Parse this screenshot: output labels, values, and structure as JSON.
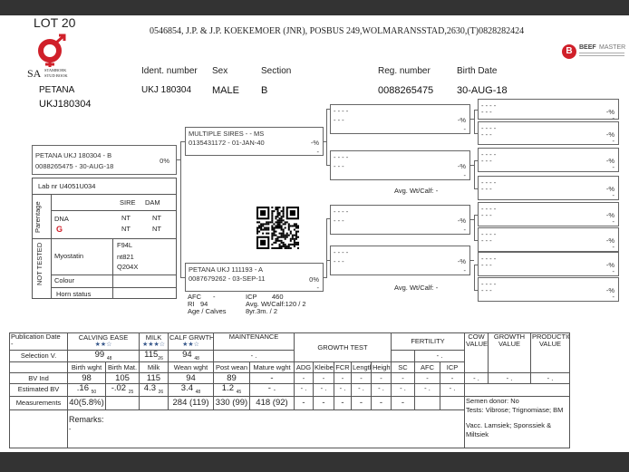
{
  "header": {
    "lot": "LOT 20",
    "address": "0546854, J.P. & J.P. KOEKEMOER (JNR), POSBUS 249,WOLMARANSSTAD,2630,(T)0828282424",
    "logo_left": {
      "prefix": "SA",
      "line1": "STAMBOEK",
      "line2": "STUD BOOK",
      "color": "#d0202a"
    },
    "logo_right": {
      "text_bold": "BEEF",
      "text_light": "MASTER",
      "mark": "B",
      "color": "#d0202a"
    }
  },
  "animal": {
    "name": "PETANA",
    "id": "UKJ180304",
    "labels": {
      "ident": "Ident. number",
      "sex": "Sex",
      "section": "Section",
      "reg": "Reg. number",
      "birth": "Birth Date"
    },
    "ident": "UKJ 180304",
    "sex": "MALE",
    "section": "B",
    "reg": "0088265475",
    "birth": "30-AUG-18"
  },
  "pedigree": {
    "subject": {
      "line1": "PETANA UKJ 180304 - B",
      "line2": "0088265475 -  30-AUG-18",
      "pct": "0%"
    },
    "sire": {
      "line1": "MULTIPLE SIRES - - MS",
      "line2": "0135431172 - 01-JAN-40",
      "pct": "-%",
      "dash": "-"
    },
    "dam": {
      "line1": "PETANA UKJ 111193 - A",
      "line2": "0087679262 - 03-SEP-11",
      "pct": "0%",
      "dash": "-"
    },
    "dam_stats": {
      "afc_label": "AFC",
      "afc": "-",
      "icp_label": "ICP",
      "icp": "460",
      "ri_label": "RI",
      "ri": "94",
      "avg_label": "Avg. Wt/Calf:120 / 2",
      "age_label": "Age / Calves",
      "age": "8yr.3m. / 2"
    },
    "gen2": [
      {
        "line1": "- - - -",
        "line2": "- - -",
        "pct": "-%",
        "dash": "-"
      },
      {
        "line1": "- - - -",
        "line2": "- - -",
        "pct": "-%",
        "dash": "-"
      },
      {
        "line1": "- - - -",
        "line2": "- - -",
        "pct": "-%",
        "dash": "-"
      },
      {
        "line1": "- - - -",
        "line2": "- - -",
        "pct": "-%",
        "dash": "-"
      }
    ],
    "avg_calf": [
      "Avg. Wt/Calf:  -",
      "Avg. Wt/Calf:  -"
    ],
    "gen3": [
      {
        "line1": "- - - -",
        "line2": "- - -",
        "pct": "-%",
        "dash": "-"
      },
      {
        "line1": "- - - -",
        "line2": "- - -",
        "pct": "-%",
        "dash": "-"
      },
      {
        "line1": "- - - -",
        "line2": "- - -",
        "pct": "-%",
        "dash": "-"
      },
      {
        "line1": "- - - -",
        "line2": "- - -",
        "pct": "-%",
        "dash": "-"
      },
      {
        "line1": "- - - -",
        "line2": "- - -",
        "pct": "-%",
        "dash": "-"
      },
      {
        "line1": "- - - -",
        "line2": "- - -",
        "pct": "-%",
        "dash": "-"
      },
      {
        "line1": "- - - -",
        "line2": "- - -",
        "pct": "-%",
        "dash": "-"
      },
      {
        "line1": "- - - -",
        "line2": "- - -",
        "pct": "-%",
        "dash": "-"
      }
    ]
  },
  "lab": {
    "lab_nr": "Lab nr  U4051U034",
    "sire": "SIRE",
    "dam": "DAM",
    "parentage": "Parentage",
    "dna": "DNA",
    "dna_sire": "NT",
    "dna_dam": "NT",
    "snp_sire": "NT",
    "snp_dam": "NT",
    "not_tested": "NOT TESTED",
    "myostatin": "Myostatin",
    "myo_values": [
      "F94L",
      "nt821",
      "Q204X"
    ],
    "colour": "Colour",
    "horn": "Horn status"
  },
  "table": {
    "pub_date": "Publication Date",
    "pub_value": "-",
    "calving_ease": "CALVING EASE",
    "calving_stars": "★★☆",
    "milk": "MILK",
    "milk_stars": "★★★☆",
    "calf_growth": "CALF GRWTH.",
    "calf_stars": "★★☆",
    "maintenance": "MAINTENANCE",
    "growth_test": "GROWTH TEST",
    "fertility": "FERTILITY",
    "cow_value": "COW VALUE",
    "growth_value": "GROWTH VALUE",
    "production_value": "PRODUCTION VALUE",
    "selection_label": "Selection V.",
    "sel_calving": "99",
    "sel_calving_acc": "48",
    "sel_milk": "115",
    "sel_milk_acc": "26",
    "sel_calf": "94",
    "sel_calf_acc": "48",
    "sel_maint": "-  .",
    "sel_fert": "-  .",
    "columns": [
      "Birth wght",
      "Birth Mat.",
      "Milk",
      "Wean wght",
      "Post wean",
      "Mature wght",
      "ADG",
      "Kleiber",
      "FCR",
      "Length",
      "Height",
      "SC",
      "AFC",
      "ICP"
    ],
    "bv_label": "BV Ind",
    "bv": [
      "98",
      "105",
      "115",
      "94",
      "89",
      "-",
      "-",
      "-",
      "-",
      "-",
      "-",
      "-",
      "-",
      "-"
    ],
    "bv_values": [
      "-  .",
      "-  .",
      "-  ."
    ],
    "ebv_label": "Estimated BV",
    "ebv": [
      [
        ".16",
        "50"
      ],
      [
        "-.02",
        "25"
      ],
      [
        "4.3",
        "26"
      ],
      [
        "3.4",
        "48"
      ],
      [
        "1.2",
        "45"
      ],
      [
        "-  .",
        ""
      ],
      [
        "-  .",
        ""
      ],
      [
        "-  .",
        ""
      ],
      [
        "-  .",
        ""
      ],
      [
        "-  .",
        ""
      ],
      [
        "-  .",
        ""
      ],
      [
        "-  .",
        ""
      ],
      [
        "-  .",
        ""
      ],
      [
        "-  .",
        ""
      ]
    ],
    "meas_label": "Measurements",
    "meas": [
      "40(5.8%)",
      "",
      "",
      "284 (119)",
      "330 (99)",
      "418 (92)",
      "-",
      "-",
      "-",
      "-",
      "-",
      "-",
      "",
      ""
    ],
    "remarks": "Remarks:",
    "remarks_value": "-",
    "semen": "Semen donor: No",
    "tests": "Tests: Vibrose; Trignomiase; BM",
    "vacc": "Vacc. Lamsiek; Sponssiek & Miltsiek"
  }
}
